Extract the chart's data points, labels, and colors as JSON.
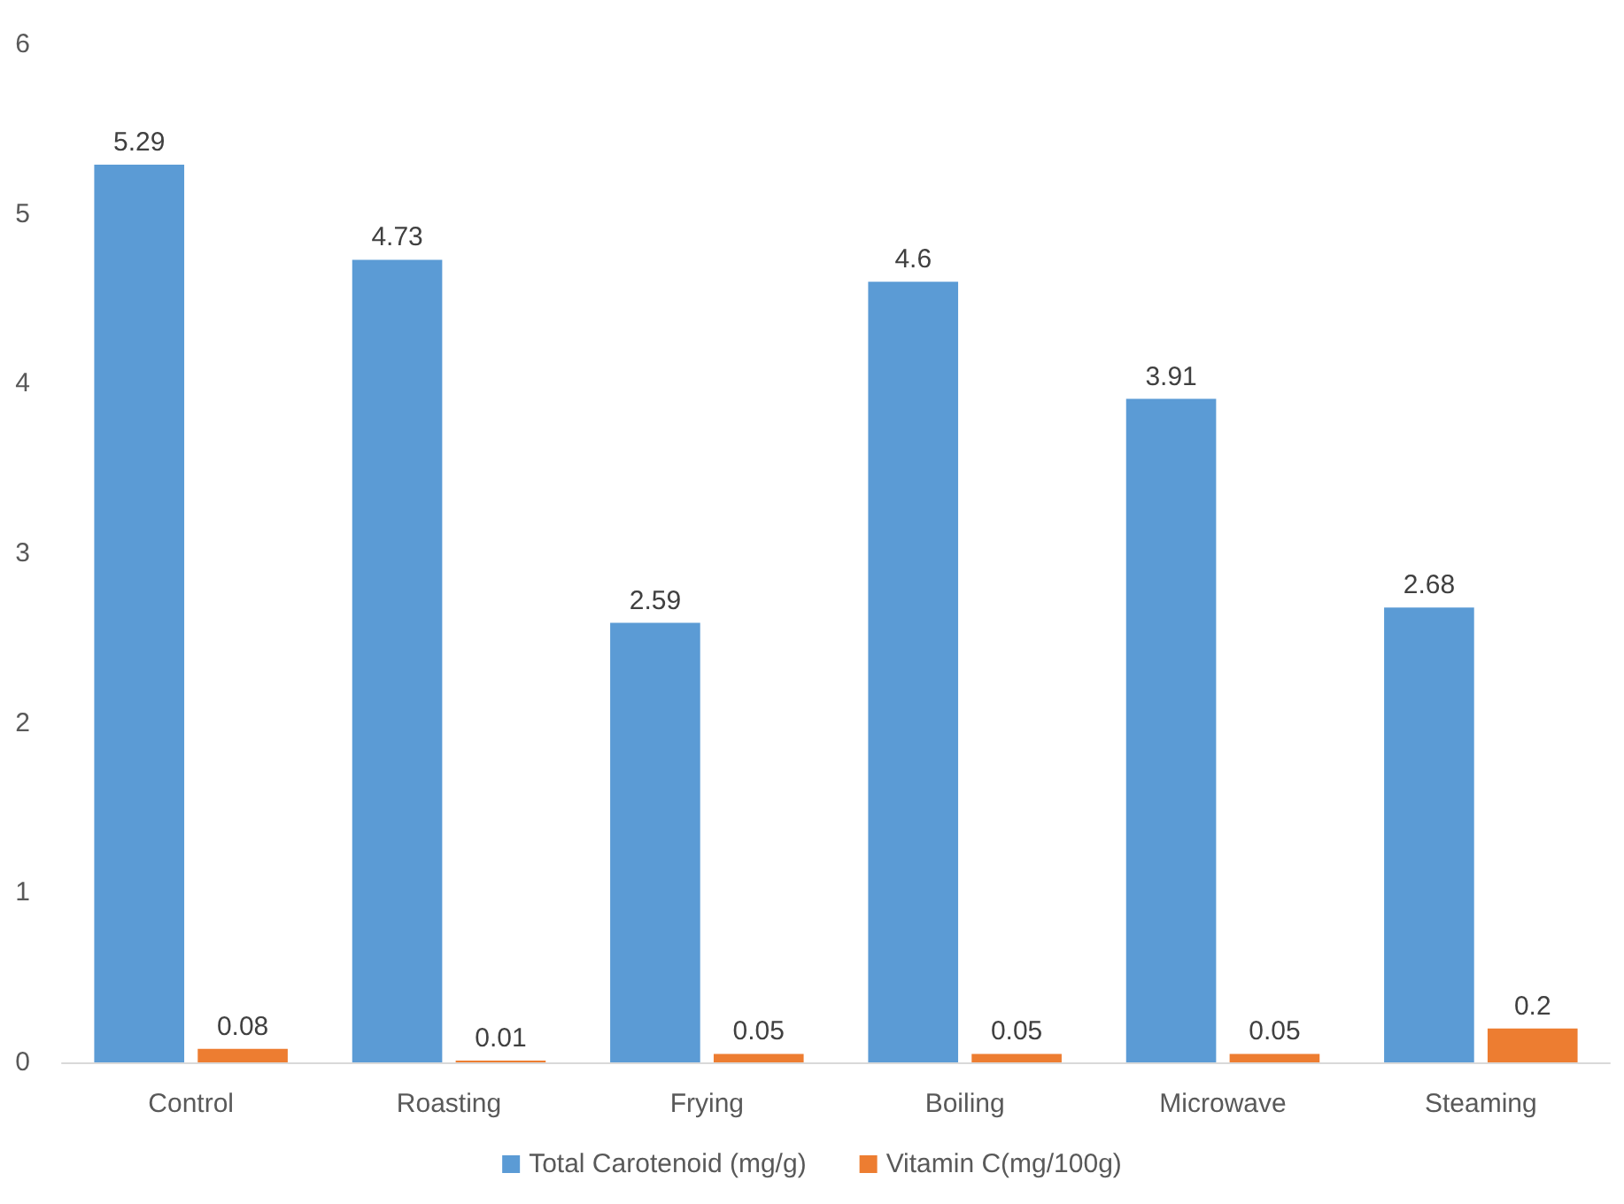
{
  "chart_data": {
    "type": "bar",
    "categories": [
      "Control",
      "Roasting",
      "Frying",
      "Boiling",
      "Microwave",
      "Steaming"
    ],
    "series": [
      {
        "name": "Total Carotenoid (mg/g)",
        "color": "#5b9bd5",
        "values": [
          5.29,
          4.73,
          2.59,
          4.6,
          3.91,
          2.68
        ]
      },
      {
        "name": "Vitamin C(mg/100g)",
        "color": "#ed7d31",
        "values": [
          0.08,
          0.01,
          0.05,
          0.05,
          0.05,
          0.2
        ]
      }
    ],
    "ylim": [
      0,
      6
    ],
    "yticks": [
      0,
      1,
      2,
      3,
      4,
      5,
      6
    ],
    "grid": false,
    "legend": "bottom",
    "data_labels": true
  }
}
